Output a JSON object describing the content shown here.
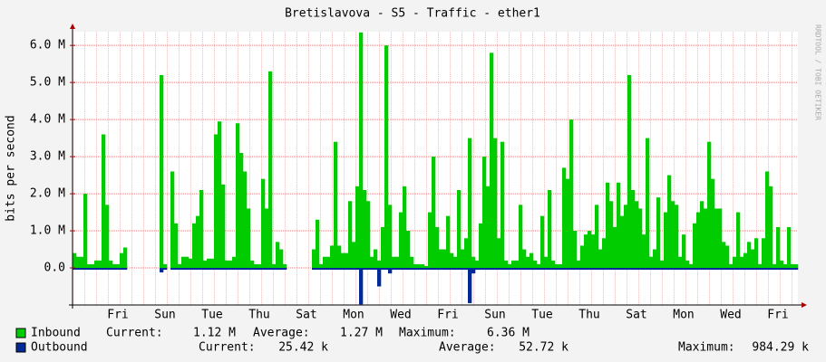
{
  "chart_data": {
    "type": "area",
    "title": "Bretislavova - S5 - Traffic - ether1",
    "y_label": "bits per second",
    "watermark": "RRDTOOL / TOBI OETIKER",
    "ylim": [
      -1000000,
      6370000
    ],
    "yticks": [
      {
        "value": 0,
        "label": "0.0"
      },
      {
        "value": 1000000,
        "label": "1.0 M"
      },
      {
        "value": 2000000,
        "label": "2.0 M"
      },
      {
        "value": 3000000,
        "label": "3.0 M"
      },
      {
        "value": 4000000,
        "label": "4.0 M"
      },
      {
        "value": 5000000,
        "label": "5.0 M"
      },
      {
        "value": 6000000,
        "label": "6.0 M"
      }
    ],
    "grid": true,
    "categories": [
      null,
      null,
      null,
      null,
      null,
      null,
      null,
      null,
      null,
      null,
      null,
      null,
      "Fri",
      null,
      null,
      null,
      null,
      null,
      null,
      null,
      null,
      null,
      null,
      null,
      null,
      "Sun",
      null,
      null,
      null,
      null,
      null,
      null,
      null,
      null,
      null,
      null,
      null,
      null,
      "Tue",
      null,
      null,
      null,
      null,
      null,
      null,
      null,
      null,
      null,
      null,
      null,
      null,
      "Thu",
      null,
      null,
      null,
      null,
      null,
      null,
      null,
      null,
      null,
      null,
      null,
      null,
      "Sat",
      null,
      null,
      null,
      null,
      null,
      null,
      null,
      null,
      null,
      null,
      null,
      null,
      "Mon",
      null,
      null,
      null,
      null,
      null,
      null,
      null,
      null,
      null,
      null,
      null,
      null,
      "Wed",
      null,
      null,
      null,
      null,
      null,
      null,
      null,
      null,
      null,
      null,
      null,
      null,
      "Fri",
      null,
      null,
      null,
      null,
      null,
      null,
      null,
      null,
      null,
      null,
      null,
      null,
      "Sun",
      null,
      null,
      null,
      null,
      null,
      null,
      null,
      null,
      null,
      null,
      null,
      null,
      "Tue",
      null,
      null,
      null,
      null,
      null,
      null,
      null,
      null,
      null,
      null,
      null,
      null,
      "Thu",
      null,
      null,
      null,
      null,
      null,
      null,
      null,
      null,
      null,
      null,
      null,
      null,
      "Sat",
      null,
      null,
      null,
      null,
      null,
      null,
      null,
      null,
      null,
      null,
      null,
      null,
      "Mon",
      null,
      null,
      null,
      null,
      null,
      null,
      null,
      null,
      null,
      null,
      null,
      null,
      "Wed",
      null,
      null,
      null,
      null,
      null,
      null,
      null,
      null,
      null,
      null,
      null,
      null,
      "Fri",
      null,
      null,
      null,
      null,
      null
    ],
    "series": [
      {
        "name": "Inbound",
        "color": "#00cc00",
        "stats": [
          {
            "name": "Current:",
            "value": 1120000,
            "label": "1.12 M"
          },
          {
            "name": "Average:",
            "value": 1270000,
            "label": "1.27 M"
          },
          {
            "name": "Maximum:",
            "value": 6360000,
            "label": "6.36 M"
          }
        ],
        "values": [
          400000,
          300000,
          300000,
          2000000,
          100000,
          100000,
          200000,
          200000,
          3600000,
          1700000,
          200000,
          100000,
          100000,
          400000,
          550000,
          0,
          0,
          0,
          0,
          0,
          0,
          0,
          0,
          0,
          5200000,
          100000,
          0,
          2600000,
          1200000,
          100000,
          300000,
          300000,
          250000,
          1200000,
          1400000,
          2100000,
          200000,
          250000,
          250000,
          3600000,
          3950000,
          2250000,
          200000,
          200000,
          300000,
          3900000,
          3100000,
          2600000,
          1600000,
          200000,
          100000,
          100000,
          2400000,
          1600000,
          5300000,
          100000,
          700000,
          500000,
          100000,
          0,
          0,
          0,
          0,
          0,
          0,
          0,
          500000,
          1300000,
          100000,
          300000,
          300000,
          600000,
          3400000,
          600000,
          400000,
          400000,
          1800000,
          700000,
          2200000,
          6350000,
          2100000,
          1800000,
          300000,
          500000,
          200000,
          1100000,
          6000000,
          1700000,
          300000,
          300000,
          1500000,
          2200000,
          1000000,
          300000,
          100000,
          100000,
          100000,
          50000,
          1500000,
          3000000,
          1100000,
          500000,
          500000,
          1400000,
          400000,
          300000,
          2100000,
          500000,
          800000,
          3500000,
          300000,
          200000,
          1200000,
          3000000,
          2200000,
          5800000,
          3500000,
          800000,
          3400000,
          200000,
          100000,
          200000,
          200000,
          1700000,
          500000,
          300000,
          400000,
          200000,
          100000,
          1400000,
          300000,
          2100000,
          200000,
          100000,
          100000,
          2700000,
          2400000,
          4000000,
          1000000,
          200000,
          600000,
          900000,
          1000000,
          900000,
          1700000,
          500000,
          800000,
          2300000,
          1800000,
          1100000,
          2300000,
          1400000,
          1700000,
          5200000,
          2100000,
          1800000,
          1600000,
          900000,
          3500000,
          300000,
          500000,
          1900000,
          200000,
          1500000,
          2500000,
          1800000,
          1700000,
          300000,
          900000,
          200000,
          100000,
          1200000,
          1500000,
          1800000,
          1600000,
          3400000,
          2400000,
          1600000,
          1600000,
          700000,
          600000,
          100000,
          300000,
          1500000,
          300000,
          400000,
          700000,
          500000,
          800000,
          100000,
          800000,
          2600000,
          2200000,
          100000,
          1100000,
          200000,
          100000,
          1100000,
          100000,
          100000
        ]
      },
      {
        "name": "Outbound",
        "color": "#002a97",
        "stats": [
          {
            "name": "Current:",
            "value": 25420,
            "label": "25.42 k"
          },
          {
            "name": "Average:",
            "value": 52720,
            "label": "52.72 k"
          },
          {
            "name": "Maximum:",
            "value": 984290,
            "label": "984.29 k"
          }
        ],
        "values": [
          -50000,
          -50000,
          -50000,
          -50000,
          -50000,
          -50000,
          -50000,
          -50000,
          -50000,
          -50000,
          -50000,
          -50000,
          -50000,
          -50000,
          -50000,
          0,
          0,
          0,
          0,
          0,
          0,
          0,
          0,
          0,
          -120000,
          -50000,
          0,
          -50000,
          -50000,
          -50000,
          -50000,
          -50000,
          -50000,
          -50000,
          -50000,
          -50000,
          -50000,
          -50000,
          -50000,
          -50000,
          -50000,
          -50000,
          -50000,
          -50000,
          -50000,
          -50000,
          -50000,
          -50000,
          -50000,
          -50000,
          -50000,
          -50000,
          -50000,
          -50000,
          -50000,
          -50000,
          -50000,
          -50000,
          -50000,
          0,
          0,
          0,
          0,
          0,
          0,
          0,
          -50000,
          -50000,
          -50000,
          -50000,
          -50000,
          -50000,
          -50000,
          -50000,
          -50000,
          -50000,
          -50000,
          -50000,
          -50000,
          -984290,
          -50000,
          -50000,
          -50000,
          -50000,
          -500000,
          -50000,
          -50000,
          -150000,
          -50000,
          -50000,
          -50000,
          -50000,
          -50000,
          -50000,
          -50000,
          -50000,
          -50000,
          -50000,
          -50000,
          -50000,
          -50000,
          -50000,
          -50000,
          -50000,
          -50000,
          -50000,
          -50000,
          -50000,
          -50000,
          -950000,
          -150000,
          -50000,
          -50000,
          -50000,
          -50000,
          -50000,
          -50000,
          -50000,
          -50000,
          -50000,
          -50000,
          -50000,
          -50000,
          -50000,
          -50000,
          -50000,
          -50000,
          -50000,
          -50000,
          -50000,
          -50000,
          -50000,
          -50000,
          -50000,
          -50000,
          -50000,
          -50000,
          -50000,
          -50000,
          -50000,
          -50000,
          -50000,
          -50000,
          -50000,
          -50000,
          -50000,
          -50000,
          -50000,
          -50000,
          -50000,
          -50000,
          -50000,
          -50000,
          -50000,
          -50000,
          -50000,
          -50000,
          -50000,
          -50000,
          -50000,
          -50000,
          -50000,
          -50000,
          -50000,
          -50000,
          -50000,
          -50000,
          -50000,
          -50000,
          -50000,
          -50000,
          -50000,
          -50000,
          -50000,
          -50000,
          -50000,
          -50000,
          -50000,
          -50000,
          -50000,
          -50000,
          -50000,
          -50000,
          -50000,
          -50000,
          -50000,
          -50000,
          -50000,
          -50000,
          -50000,
          -50000,
          -50000,
          -50000,
          -50000,
          -50000,
          -50000,
          -50000,
          -50000,
          -50000,
          -50000
        ]
      }
    ]
  }
}
